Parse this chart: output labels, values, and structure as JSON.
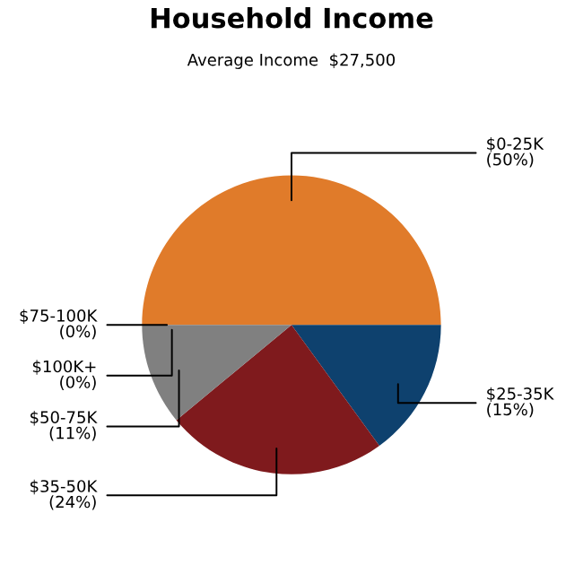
{
  "chart_data": {
    "type": "pie",
    "title": "Household Income",
    "subtitle": "Average Income  $27,500",
    "categories": [
      "$0-25K",
      "$25-35K",
      "$35-50K",
      "$50-75K",
      "$75-100K",
      "$100K+"
    ],
    "values": [
      50,
      15,
      24,
      11,
      0,
      0
    ],
    "value_labels": [
      "(50%)",
      "(15%)",
      "(24%)",
      "(11%)",
      "(0%)",
      "(0%)"
    ],
    "colors": [
      "#e07b2a",
      "#0e416e",
      "#7f1a1d",
      "#808080",
      "#4f7f3f",
      "#c9b037"
    ]
  }
}
